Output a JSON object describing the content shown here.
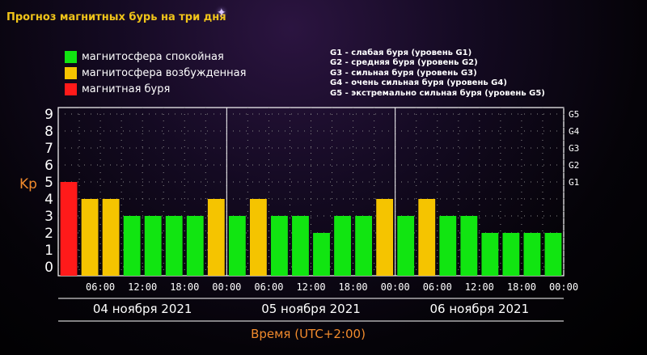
{
  "header": {
    "title": "Прогноз магнитных бурь на три дня",
    "star_icon": "sparkle-icon"
  },
  "legend": [
    {
      "label": "магнитосфера спокойная",
      "color": "#11e511"
    },
    {
      "label": "магнитосфера возбужденная",
      "color": "#f5c400"
    },
    {
      "label": "магнитная буря",
      "color": "#ff1a1a"
    }
  ],
  "g_legend": [
    "G1 - слабая буря (уровень G1)",
    "G2 - средняя буря (уровень G2)",
    "G3 - сильная буря (уровень G3)",
    "G4 - очень сильная буря (уровень G4)",
    "G5 - экстремально сильная буря (уровень G5)"
  ],
  "chart_data": {
    "type": "bar",
    "ylabel": "Kp",
    "xlabel": "Время (UTC+2:00)",
    "ylim": [
      0,
      9
    ],
    "y_ticks": [
      "0",
      "1",
      "2",
      "3",
      "4",
      "5",
      "6",
      "7",
      "8",
      "9"
    ],
    "right_ticks": [
      {
        "label": "G1",
        "kp": 5
      },
      {
        "label": "G2",
        "kp": 6
      },
      {
        "label": "G3",
        "kp": 7
      },
      {
        "label": "G4",
        "kp": 8
      },
      {
        "label": "G5",
        "kp": 9
      }
    ],
    "x_tick_labels": [
      "06:00",
      "12:00",
      "18:00",
      "00:00",
      "06:00",
      "12:00",
      "18:00",
      "00:00",
      "06:00",
      "12:00",
      "18:00",
      "00:00"
    ],
    "days": [
      "04 ноября 2021",
      "05 ноября 2021",
      "06 ноября 2021"
    ],
    "values": [
      5,
      4,
      4,
      3,
      3,
      3,
      3,
      4,
      3,
      4,
      3,
      3,
      2,
      3,
      3,
      4,
      3,
      4,
      3,
      3,
      2,
      2,
      2,
      2
    ],
    "levels": [
      "storm",
      "excited",
      "excited",
      "calm",
      "calm",
      "calm",
      "calm",
      "excited",
      "calm",
      "excited",
      "calm",
      "calm",
      "calm",
      "calm",
      "calm",
      "excited",
      "calm",
      "excited",
      "calm",
      "calm",
      "calm",
      "calm",
      "calm",
      "calm"
    ],
    "level_colors": {
      "calm": "#11e511",
      "excited": "#f5c400",
      "storm": "#ff1a1a"
    },
    "grid": true
  }
}
